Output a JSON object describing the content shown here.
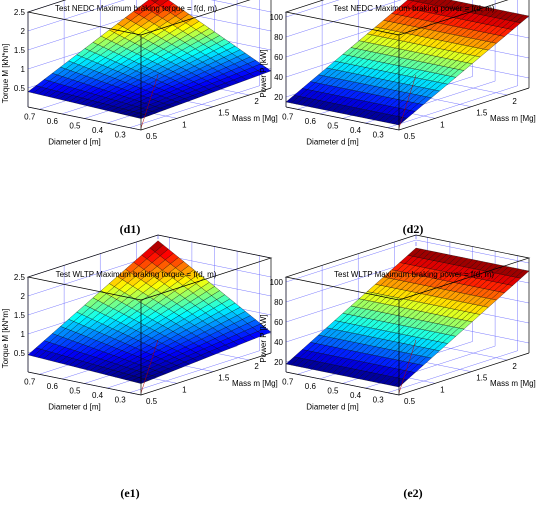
{
  "chart_data": [
    {
      "type": "surface",
      "title": "Test  NEDC  Maximum braking torque = f(d, m)",
      "caption": "(d1)",
      "xlabel": "Diameter d [m]",
      "ylabel": "Mass m [Mg]",
      "zlabel": "Torque M [kN*m]",
      "x_ticks": [
        "0.7",
        "0.6",
        "0.5",
        "0.4",
        "0.3"
      ],
      "y_ticks": [
        "0.5",
        "1",
        "1.5",
        "2"
      ],
      "z_ticks": [
        "0.5",
        "1",
        "1.5",
        "2",
        "2.5"
      ],
      "xlim": [
        0.25,
        0.75
      ],
      "ylim": [
        0.5,
        2.3
      ],
      "zlim": [
        0,
        2.5
      ],
      "colormap": "jet",
      "grid": true,
      "surface": {
        "d": [
          0.25,
          0.75
        ],
        "m": [
          0.5,
          2.3
        ],
        "z_min": 0.3,
        "z_max": 1.9,
        "z_at_dmin_mmax": 0.45,
        "z_at_dmax_mmin": 0.4
      }
    },
    {
      "type": "surface",
      "title": "Test  NEDC  Maximum braking power = f(d, m)",
      "caption": "(d2)",
      "xlabel": "Diameter d [m]",
      "ylabel": "Mass m [Mg]",
      "zlabel": "Power P [kW]",
      "x_ticks": [
        "0.7",
        "0.6",
        "0.5",
        "0.4",
        "0.3"
      ],
      "y_ticks": [
        "0.5",
        "1",
        "1.5",
        "2"
      ],
      "z_ticks": [
        "20",
        "40",
        "60",
        "80",
        "100"
      ],
      "xlim": [
        0.25,
        0.75
      ],
      "ylim": [
        0.5,
        2.3
      ],
      "zlim": [
        10,
        105
      ],
      "colormap": "jet",
      "grid": true,
      "surface": {
        "d": [
          0.25,
          0.75
        ],
        "m": [
          0.5,
          2.3
        ],
        "z_min": 15,
        "z_max": 82,
        "z_at_dmin_mmax": 82,
        "z_at_dmax_mmin": 15
      }
    },
    {
      "type": "surface",
      "title": "Test  WLTP  Maximum braking torque = f(d, m)",
      "caption": "(e1)",
      "xlabel": "Diameter d [m]",
      "ylabel": "Mass m [Mg]",
      "zlabel": "Torque M [kN*m]",
      "x_ticks": [
        "0.7",
        "0.6",
        "0.5",
        "0.4",
        "0.3"
      ],
      "y_ticks": [
        "0.5",
        "1",
        "1.5",
        "2"
      ],
      "z_ticks": [
        "0.5",
        "1",
        "1.5",
        "2",
        "2.5"
      ],
      "xlim": [
        0.25,
        0.75
      ],
      "ylim": [
        0.5,
        2.3
      ],
      "zlim": [
        0,
        2.5
      ],
      "colormap": "jet",
      "grid": true,
      "surface": {
        "d": [
          0.25,
          0.75
        ],
        "m": [
          0.5,
          2.3
        ],
        "z_min": 0.3,
        "z_max": 2.35,
        "z_at_dmin_mmax": 0.55,
        "z_at_dmax_mmin": 0.45
      }
    },
    {
      "type": "surface",
      "title": "Test  WLTP  Maximum braking power = f(d, m)",
      "caption": "(e2)",
      "xlabel": "Diameter d [m]",
      "ylabel": "Mass m [Mg]",
      "zlabel": "Power P [kW]",
      "x_ticks": [
        "0.7",
        "0.6",
        "0.5",
        "0.4",
        "0.3"
      ],
      "y_ticks": [
        "0.5",
        "1",
        "1.5",
        "2"
      ],
      "z_ticks": [
        "20",
        "40",
        "60",
        "80",
        "100"
      ],
      "xlim": [
        0.25,
        0.75
      ],
      "ylim": [
        0.5,
        2.3
      ],
      "zlim": [
        10,
        105
      ],
      "colormap": "jet",
      "grid": true,
      "surface": {
        "d": [
          0.25,
          0.75
        ],
        "m": [
          0.5,
          2.3
        ],
        "z_min": 18,
        "z_max": 92,
        "z_at_dmin_mmax": 92,
        "z_at_dmax_mmin": 18
      }
    }
  ]
}
